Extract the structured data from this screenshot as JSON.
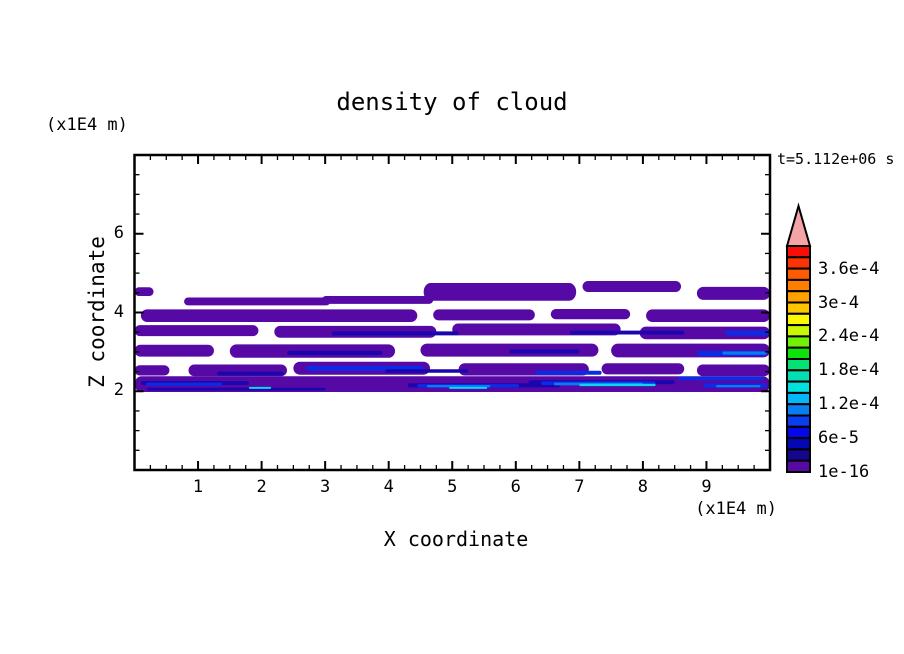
{
  "title": "density of cloud",
  "time_label": "t=5.112e+06 s",
  "axes": {
    "x": {
      "label": "X coordinate",
      "unit": "(x1E4 m)",
      "min": 0,
      "max": 10,
      "major_ticks": [
        "1",
        "2",
        "3",
        "4",
        "5",
        "6",
        "7",
        "8",
        "9"
      ],
      "minor_step": 0.25
    },
    "z": {
      "label": "Z coordinate",
      "unit": "(x1E4 m)",
      "min": 0,
      "max": 8,
      "major_ticks": [
        "2",
        "4",
        "6"
      ],
      "minor_step": 0.5
    }
  },
  "chart_data": {
    "type": "heatmap",
    "subtype": "filled-contour",
    "title": "density of cloud",
    "xlabel": "X coordinate",
    "ylabel": "Z coordinate",
    "x_unit": "(x1E4 m)",
    "z_unit": "(x1E4 m)",
    "time_annotation": "t=5.112e+06 s",
    "x_range": [
      0,
      10
    ],
    "z_range": [
      0,
      8
    ],
    "grid": false,
    "legend_position": "right-colorbar",
    "colorbar": {
      "boundary_labels": [
        "3.6e-4",
        "3e-4",
        "2.4e-4",
        "1.8e-4",
        "1.2e-4",
        "6e-5",
        "1e-16"
      ],
      "label_offset_cells": 2,
      "label_every_cells": 3,
      "arrow_color": "#f4a3a6",
      "cell_colors_top_to_bottom": [
        "#f90d07",
        "#fa3304",
        "#fd5a01",
        "#fe7e00",
        "#ffa000",
        "#ffc600",
        "#fcf802",
        "#c9f704",
        "#71f104",
        "#0ce40a",
        "#03e375",
        "#02dfb4",
        "#02e0e0",
        "#02b6f8",
        "#097ef3",
        "#0a3cf0",
        "#0607e8",
        "#0506b6",
        "#16068e",
        "#5609a5"
      ]
    },
    "palette": {
      "p": "#5609a5",
      "n": "#1a05ae",
      "b": "#0a2ce6",
      "d": "#0a7cf2",
      "c": "#09d8ee"
    },
    "streaks": [
      [
        "p",
        0.0,
        4.42,
        0.3,
        0.22
      ],
      [
        "p",
        0.78,
        4.18,
        2.3,
        0.2
      ],
      [
        "p",
        2.95,
        4.22,
        1.75,
        0.2
      ],
      [
        "p",
        4.55,
        4.3,
        2.4,
        0.45
      ],
      [
        "p",
        7.05,
        4.52,
        1.55,
        0.28
      ],
      [
        "p",
        8.85,
        4.32,
        1.15,
        0.33
      ],
      [
        "p",
        0.1,
        3.76,
        4.35,
        0.32
      ],
      [
        "p",
        4.7,
        3.8,
        1.6,
        0.28
      ],
      [
        "p",
        6.55,
        3.83,
        1.25,
        0.26
      ],
      [
        "p",
        8.05,
        3.76,
        1.95,
        0.32
      ],
      [
        "p",
        0.0,
        3.4,
        1.95,
        0.28
      ],
      [
        "p",
        2.2,
        3.36,
        2.55,
        0.3
      ],
      [
        "p",
        5.0,
        3.42,
        2.65,
        0.3
      ],
      [
        "p",
        7.95,
        3.32,
        2.05,
        0.32
      ],
      [
        "n",
        3.1,
        3.42,
        2.0,
        0.1
      ],
      [
        "n",
        6.85,
        3.44,
        1.8,
        0.1
      ],
      [
        "b",
        9.3,
        3.42,
        0.7,
        0.12
      ],
      [
        "p",
        0.0,
        2.88,
        1.25,
        0.3
      ],
      [
        "p",
        1.5,
        2.85,
        2.6,
        0.34
      ],
      [
        "p",
        4.5,
        2.88,
        2.8,
        0.33
      ],
      [
        "p",
        7.5,
        2.86,
        2.5,
        0.35
      ],
      [
        "n",
        2.4,
        2.92,
        1.5,
        0.11
      ],
      [
        "n",
        5.9,
        2.96,
        1.1,
        0.1
      ],
      [
        "b",
        8.85,
        2.9,
        1.1,
        0.13
      ],
      [
        "d",
        9.25,
        2.93,
        0.7,
        0.08
      ],
      [
        "p",
        0.0,
        2.4,
        0.55,
        0.26
      ],
      [
        "p",
        0.85,
        2.38,
        1.55,
        0.3
      ],
      [
        "p",
        2.5,
        2.42,
        2.15,
        0.33
      ],
      [
        "p",
        5.1,
        2.4,
        2.05,
        0.31
      ],
      [
        "p",
        7.35,
        2.43,
        1.3,
        0.28
      ],
      [
        "p",
        8.85,
        2.38,
        1.15,
        0.3
      ],
      [
        "n",
        1.3,
        2.4,
        1.05,
        0.1
      ],
      [
        "b",
        2.7,
        2.52,
        1.85,
        0.12
      ],
      [
        "n",
        3.95,
        2.47,
        1.3,
        0.09
      ],
      [
        "b",
        6.3,
        2.42,
        1.05,
        0.1
      ],
      [
        "p",
        0.0,
        1.98,
        10.0,
        0.4
      ],
      [
        "n",
        0.1,
        2.16,
        1.7,
        0.1
      ],
      [
        "b",
        0.18,
        2.14,
        1.2,
        0.08
      ],
      [
        "n",
        0.2,
        2.02,
        2.8,
        0.07
      ],
      [
        "n",
        4.3,
        2.1,
        2.4,
        0.1
      ],
      [
        "b",
        4.45,
        2.1,
        1.6,
        0.08
      ],
      [
        "d",
        4.6,
        2.1,
        1.0,
        0.06
      ],
      [
        "c",
        4.95,
        2.06,
        0.6,
        0.05
      ],
      [
        "c",
        1.8,
        2.06,
        0.35,
        0.05
      ],
      [
        "n",
        6.2,
        2.18,
        2.3,
        0.1
      ],
      [
        "b",
        6.4,
        2.16,
        1.8,
        0.09
      ],
      [
        "d",
        6.6,
        2.15,
        1.4,
        0.07
      ],
      [
        "c",
        7.0,
        2.13,
        1.2,
        0.06
      ],
      [
        "b",
        8.55,
        2.28,
        1.35,
        0.09
      ],
      [
        "b",
        8.95,
        2.1,
        1.0,
        0.1
      ],
      [
        "d",
        9.15,
        2.1,
        0.7,
        0.06
      ]
    ]
  }
}
